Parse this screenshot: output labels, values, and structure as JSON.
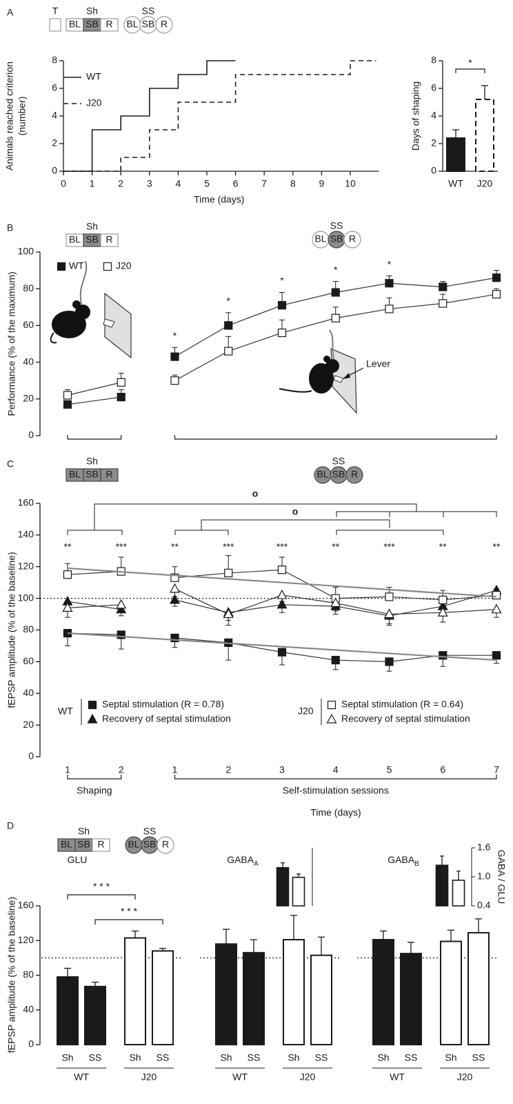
{
  "panels": [
    "A",
    "B",
    "C",
    "D"
  ],
  "schematics": {
    "A": [
      {
        "label": "T",
        "shape": "rect",
        "boxes": [],
        "active": [],
        "muted": true
      },
      {
        "label": "Sh",
        "shape": "rect",
        "boxes": [
          "BL",
          "SB",
          "R"
        ],
        "active": [
          false,
          true,
          false
        ],
        "muted": false
      },
      {
        "label": "SS",
        "shape": "circle",
        "boxes": [
          "BL",
          "SB",
          "R"
        ],
        "active": [
          false,
          false,
          false
        ],
        "muted": true
      }
    ],
    "B": [
      {
        "label": "Sh",
        "shape": "rect",
        "boxes": [
          "BL",
          "SB",
          "R"
        ],
        "active": [
          false,
          true,
          false
        ],
        "muted": false
      },
      {
        "label": "SS",
        "shape": "circle",
        "boxes": [
          "BL",
          "SB",
          "R"
        ],
        "active": [
          false,
          true,
          false
        ],
        "muted": false
      }
    ],
    "C": [
      {
        "label": "Sh",
        "shape": "rect",
        "boxes": [
          "BL",
          "SB",
          "R"
        ],
        "active": [
          true,
          true,
          true
        ],
        "muted": false
      },
      {
        "label": "SS",
        "shape": "circle",
        "boxes": [
          "BL",
          "SB",
          "R"
        ],
        "active": [
          true,
          true,
          true
        ],
        "muted": false
      }
    ],
    "D": [
      {
        "label": "Sh",
        "shape": "rect",
        "boxes": [
          "BL",
          "SB",
          "R"
        ],
        "active": [
          true,
          true,
          false
        ],
        "muted": false
      },
      {
        "label": "SS",
        "shape": "circle",
        "boxes": [
          "BL",
          "SB",
          "R"
        ],
        "active": [
          true,
          true,
          false
        ],
        "muted": false
      }
    ]
  },
  "chart_data": [
    {
      "type": "step",
      "x": [
        0,
        1,
        2,
        3,
        4,
        5,
        6,
        10,
        10.9
      ],
      "xlim": [
        0,
        11
      ],
      "xticks": [
        0,
        1,
        2,
        3,
        4,
        5,
        6,
        7,
        8,
        9,
        10
      ],
      "ylim": [
        0,
        8
      ],
      "yticks": [
        0,
        2,
        4,
        6,
        8
      ],
      "xlabel": "Time (days)",
      "ylabel": [
        "Animals reached criterion",
        "(number)"
      ],
      "series": [
        {
          "name": "WT",
          "color": "#1a1a1a",
          "dash": false,
          "values": [
            0,
            3,
            4,
            6,
            7,
            8,
            8,
            null,
            null
          ]
        },
        {
          "name": "J20",
          "color": "#1a1a1a",
          "dash": true,
          "values": [
            0,
            0,
            1,
            3,
            5,
            5,
            7,
            8,
            8
          ]
        }
      ]
    },
    {
      "type": "bar",
      "categories": [
        "WT",
        "J20"
      ],
      "values": [
        2.4,
        5.2
      ],
      "errors": [
        0.6,
        1.0
      ],
      "colors": [
        "#1a1a1a",
        "#ffffff"
      ],
      "dash": [
        false,
        true
      ],
      "ylim": [
        0,
        8
      ],
      "yticks": [
        0,
        2,
        4,
        6,
        8
      ],
      "ylabel": "Days of shaping",
      "significance": "*"
    },
    {
      "type": "line",
      "categories": [
        [
          null,
          null
        ],
        [
          null,
          null,
          null,
          null,
          null,
          null,
          null
        ]
      ],
      "ylim": [
        0,
        100
      ],
      "yticks": [
        0,
        20,
        40,
        60,
        80,
        100
      ],
      "ylabel": "Performance (% of the maximum)",
      "series": [
        {
          "name": "WT",
          "color": "#1a1a1a",
          "marker": "square",
          "error_dir": "up",
          "values": [
            [
              17,
              21
            ],
            [
              43,
              60,
              71,
              78,
              83,
              81,
              86
            ]
          ],
          "errors": [
            [
              2,
              4
            ],
            [
              5,
              7,
              7,
              6,
              4,
              3,
              4
            ]
          ]
        },
        {
          "name": "J20",
          "color": "#ffffff",
          "marker": "square",
          "error_dir": "up",
          "values": [
            [
              22,
              29
            ],
            [
              30,
              46,
              56,
              64,
              69,
              72,
              77
            ]
          ],
          "errors": [
            [
              3,
              5
            ],
            [
              3,
              8,
              7,
              6,
              6,
              5,
              3
            ]
          ]
        }
      ],
      "annotations": [
        [
          null,
          null
        ],
        [
          "*",
          "*",
          "*",
          "*",
          "*",
          null,
          null
        ]
      ],
      "annotation": "Lever"
    },
    {
      "type": "line",
      "categories": [
        [
          "1",
          "2"
        ],
        [
          "1",
          "2",
          "3",
          "4",
          "5",
          "6",
          "7"
        ]
      ],
      "phase_labels": [
        "Shaping",
        "Self-stimulation sessions"
      ],
      "xlabel": "Time (days)",
      "ylim": [
        0,
        160
      ],
      "yticks": [
        0,
        20,
        40,
        60,
        80,
        100,
        120,
        140,
        160
      ],
      "ylabel": "fEPSP amplitude (% of the baseline)",
      "reference": 100,
      "series": [
        {
          "name": "Septal stimulation (R = 0.78)",
          "group": "WT",
          "color": "#1a1a1a",
          "marker": "square",
          "error_dir": "down",
          "values": [
            [
              78,
              77
            ],
            [
              75,
              72,
              66,
              61,
              60,
              64,
              64
            ]
          ],
          "errors": [
            [
              8,
              9
            ],
            [
              6,
              11,
              8,
              6,
              6,
              7,
              5
            ]
          ]
        },
        {
          "name": "Recovery of septal stimulation",
          "group": "WT",
          "color": "#1a1a1a",
          "marker": "triangle",
          "error_dir": "down",
          "values": [
            [
              98,
              93
            ],
            [
              99,
              91,
              96,
              95,
              89,
              95,
              105
            ]
          ],
          "errors": [
            [
              4,
              4
            ],
            [
              4,
              5,
              5,
              5,
              6,
              6,
              3
            ]
          ]
        },
        {
          "name": "Septal stimulation (R = 0.64)",
          "group": "J20",
          "color": "#ffffff",
          "marker": "square",
          "error_dir": "up",
          "values": [
            [
              115,
              117
            ],
            [
              113,
              116,
              118,
              100,
              101,
              99,
              102
            ]
          ],
          "errors": [
            [
              7,
              9
            ],
            [
              7,
              11,
              8,
              7,
              6,
              6,
              4
            ]
          ]
        },
        {
          "name": "Recovery of septal stimulation",
          "group": "J20",
          "color": "#ffffff",
          "marker": "triangle",
          "error_dir": "down",
          "values": [
            [
              94,
              96
            ],
            [
              106,
              90,
              102,
              97,
              90,
              91,
              93
            ]
          ],
          "errors": [
            [
              6,
              5
            ],
            [
              5,
              7,
              4,
              5,
              6,
              6,
              5
            ]
          ]
        }
      ],
      "trendlines": [
        {
          "color": "#888888",
          "values": [
            78,
            61
          ]
        },
        {
          "color": "#888888",
          "values": [
            119,
            101
          ]
        }
      ],
      "annotations": [
        [
          "**",
          "***"
        ],
        [
          "**",
          "***",
          "***",
          "**",
          "***",
          "**",
          "**"
        ]
      ],
      "comparisons": [
        "o",
        "o"
      ]
    },
    {
      "type": "grouped_bar",
      "title": "GLU",
      "categories": [
        "Sh",
        "SS",
        "Sh",
        "SS"
      ],
      "groups": [
        "WT",
        "J20"
      ],
      "values": [
        78,
        67,
        123,
        108
      ],
      "errors": [
        10,
        5,
        8,
        3
      ],
      "colors": [
        "#1a1a1a",
        "#1a1a1a",
        "#ffffff",
        "#ffffff"
      ],
      "ylim": [
        0,
        160
      ],
      "yticks": [
        0,
        40,
        80,
        120,
        160
      ],
      "ylabel": "fEPSP amplitude (% of the baseline)",
      "reference": 100,
      "significance": [
        "* * *",
        "* * *"
      ]
    },
    {
      "type": "grouped_bar",
      "title": "GABA",
      "title_sub": "A",
      "categories": [
        "Sh",
        "SS",
        "Sh",
        "SS"
      ],
      "groups": [
        "WT",
        "J20"
      ],
      "values": [
        116,
        106,
        121,
        103
      ],
      "errors": [
        17,
        15,
        28,
        21
      ],
      "colors": [
        "#1a1a1a",
        "#1a1a1a",
        "#ffffff",
        "#ffffff"
      ],
      "ylim": [
        0,
        160
      ],
      "reference": 100,
      "inset": {
        "values": [
          1.19,
          0.99
        ],
        "errors": [
          0.1,
          0.07
        ],
        "colors": [
          "#1a1a1a",
          "#ffffff"
        ],
        "ylim": [
          0.4,
          1.6
        ]
      }
    },
    {
      "type": "grouped_bar",
      "title": "GABA",
      "title_sub": "B",
      "categories": [
        "Sh",
        "SS",
        "Sh",
        "SS"
      ],
      "groups": [
        "WT",
        "J20"
      ],
      "values": [
        121,
        105,
        119,
        129
      ],
      "errors": [
        10,
        13,
        13,
        16
      ],
      "colors": [
        "#1a1a1a",
        "#1a1a1a",
        "#ffffff",
        "#ffffff"
      ],
      "ylim": [
        0,
        160
      ],
      "reference": 100,
      "inset": {
        "values": [
          1.24,
          0.93
        ],
        "errors": [
          0.19,
          0.19
        ],
        "colors": [
          "#1a1a1a",
          "#ffffff"
        ],
        "ylim": [
          0.4,
          1.6
        ],
        "yticks": [
          0.4,
          {
            "value": 1.0,
            "label": "1.0"
          },
          1.6
        ],
        "ylabel": "GABA / GLU"
      }
    }
  ]
}
